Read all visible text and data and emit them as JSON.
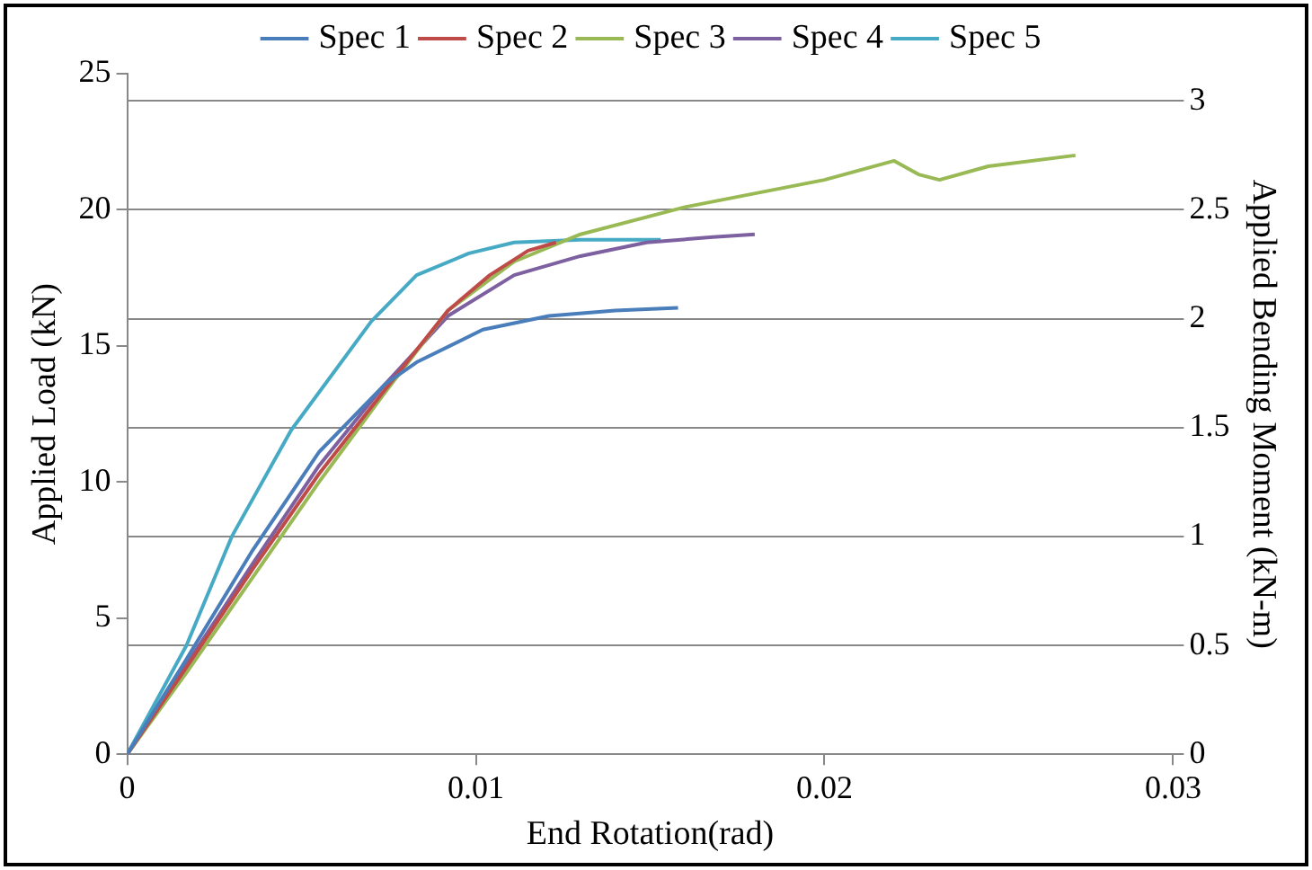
{
  "chart_data": {
    "type": "line",
    "xlabel": "End Rotation(rad)",
    "ylabel": "Applied Load (kN)",
    "y2label": "Applied Bending Moment (kN-m)",
    "xlim": [
      0,
      0.03
    ],
    "xticks": [
      0,
      0.01,
      0.02,
      0.03
    ],
    "ylim": [
      0,
      25
    ],
    "yticks": [
      0,
      5,
      10,
      15,
      20,
      25
    ],
    "y2lim": [
      0,
      3.125
    ],
    "y2ticks": [
      0,
      0.5,
      1,
      1.5,
      2,
      2.5,
      3
    ],
    "grid": "y",
    "legend": "top",
    "marker": "none",
    "line_style": "solid",
    "series": [
      {
        "name": "Spec 1",
        "color": "#4a7ebb",
        "x": [
          0,
          0.0017,
          0.0036,
          0.0055,
          0.0074,
          0.0083,
          0.0102,
          0.0121,
          0.014,
          0.0158
        ],
        "values": [
          0,
          3.5,
          7.5,
          11.1,
          13.6,
          14.4,
          15.6,
          16.1,
          16.3,
          16.4
        ]
      },
      {
        "name": "Spec 2",
        "color": "#be4b48",
        "x": [
          0,
          0.0017,
          0.0036,
          0.0055,
          0.0074,
          0.0092,
          0.0104,
          0.0115,
          0.0123
        ],
        "values": [
          0,
          3.2,
          6.8,
          10.3,
          13.4,
          16.3,
          17.6,
          18.5,
          18.8
        ]
      },
      {
        "name": "Spec 3",
        "color": "#98b954",
        "x": [
          0,
          0.0017,
          0.0036,
          0.0055,
          0.0074,
          0.0092,
          0.0111,
          0.013,
          0.016,
          0.02,
          0.022,
          0.0227,
          0.0233,
          0.0247,
          0.0272
        ],
        "values": [
          0,
          3.0,
          6.5,
          10.0,
          13.3,
          16.3,
          18.1,
          19.1,
          20.1,
          21.1,
          21.8,
          21.3,
          21.1,
          21.6,
          22.0
        ]
      },
      {
        "name": "Spec 4",
        "color": "#7d60a0",
        "x": [
          0,
          0.0017,
          0.0036,
          0.0055,
          0.0074,
          0.0092,
          0.0111,
          0.013,
          0.0149,
          0.0168,
          0.018
        ],
        "values": [
          0,
          3.3,
          7.0,
          10.6,
          13.6,
          16.1,
          17.6,
          18.3,
          18.8,
          19.0,
          19.1
        ]
      },
      {
        "name": "Spec 5",
        "color": "#46aac5",
        "x": [
          0,
          0.0017,
          0.003,
          0.0047,
          0.007,
          0.0083,
          0.0098,
          0.0111,
          0.013,
          0.0153
        ],
        "values": [
          0,
          4.0,
          8.0,
          11.9,
          15.9,
          17.6,
          18.4,
          18.8,
          18.9,
          18.9
        ]
      }
    ]
  }
}
